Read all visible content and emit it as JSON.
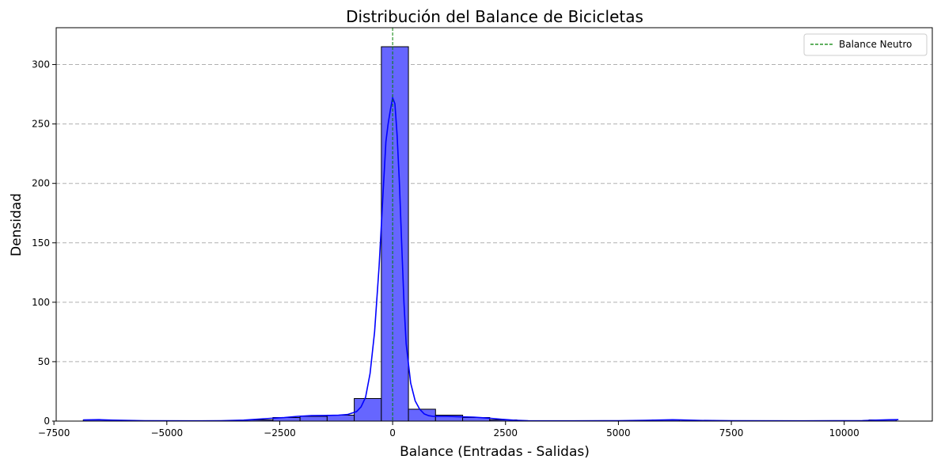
{
  "chart_data": {
    "type": "bar",
    "title": "Distribución del Balance de Bicicletas",
    "xlabel": "Balance (Entradas - Salidas)",
    "ylabel": "Densidad",
    "xlim": [
      -7450,
      11950
    ],
    "ylim": [
      0,
      331
    ],
    "x_ticks": [
      -7500,
      -5000,
      -2500,
      0,
      2500,
      5000,
      7500,
      10000
    ],
    "x_tick_labels": [
      "−7500",
      "−5000",
      "−2500",
      "0",
      "2500",
      "5000",
      "7500",
      "10000"
    ],
    "y_ticks": [
      0,
      50,
      100,
      150,
      200,
      250,
      300
    ],
    "y_tick_labels": [
      "0",
      "50",
      "100",
      "150",
      "200",
      "250",
      "300"
    ],
    "grid": "y-dashed",
    "bar_color": "#6666ff",
    "kde_color": "#0000ff",
    "bins": [
      {
        "start": -6850,
        "end": -6250,
        "value": 1
      },
      {
        "start": -6250,
        "end": -5650,
        "value": 0
      },
      {
        "start": -5650,
        "end": -5050,
        "value": 0
      },
      {
        "start": -5050,
        "end": -4450,
        "value": 0
      },
      {
        "start": -4450,
        "end": -3850,
        "value": 0
      },
      {
        "start": -3850,
        "end": -3250,
        "value": 0
      },
      {
        "start": -3250,
        "end": -2650,
        "value": 1
      },
      {
        "start": -2650,
        "end": -2050,
        "value": 3
      },
      {
        "start": -2050,
        "end": -1450,
        "value": 4
      },
      {
        "start": -1450,
        "end": -850,
        "value": 5
      },
      {
        "start": -850,
        "end": -250,
        "value": 19
      },
      {
        "start": -250,
        "end": 350,
        "value": 315
      },
      {
        "start": 350,
        "end": 950,
        "value": 10
      },
      {
        "start": 950,
        "end": 1550,
        "value": 5
      },
      {
        "start": 1550,
        "end": 2150,
        "value": 3
      },
      {
        "start": 2150,
        "end": 2750,
        "value": 1
      },
      {
        "start": 2750,
        "end": 3350,
        "value": 0
      },
      {
        "start": 3350,
        "end": 3950,
        "value": 0
      },
      {
        "start": 3950,
        "end": 4550,
        "value": 0
      },
      {
        "start": 4550,
        "end": 5150,
        "value": 0
      },
      {
        "start": 5150,
        "end": 5750,
        "value": 0
      },
      {
        "start": 5750,
        "end": 6350,
        "value": 1
      },
      {
        "start": 6350,
        "end": 6950,
        "value": 0
      },
      {
        "start": 6950,
        "end": 7550,
        "value": 0
      },
      {
        "start": 7550,
        "end": 8150,
        "value": 0
      },
      {
        "start": 8150,
        "end": 8750,
        "value": 0
      },
      {
        "start": 8750,
        "end": 9350,
        "value": 0
      },
      {
        "start": 9350,
        "end": 9950,
        "value": 0
      },
      {
        "start": 9950,
        "end": 10550,
        "value": 0
      },
      {
        "start": 10550,
        "end": 11150,
        "value": 1
      }
    ],
    "kde": {
      "x": [
        -6850,
        -6500,
        -6200,
        -5500,
        -4500,
        -3800,
        -3300,
        -3000,
        -2700,
        -2400,
        -2100,
        -1800,
        -1500,
        -1200,
        -1000,
        -800,
        -700,
        -600,
        -500,
        -400,
        -300,
        -200,
        -150,
        -100,
        -50,
        0,
        50,
        100,
        150,
        200,
        250,
        300,
        400,
        500,
        600,
        700,
        800,
        900,
        1000,
        1200,
        1500,
        1800,
        2100,
        2400,
        2700,
        3000,
        4000,
        5000,
        5600,
        6000,
        6200,
        6400,
        6800,
        7500,
        9000,
        10400,
        10700,
        11000,
        11200
      ],
      "y": [
        1,
        1.2,
        0.8,
        0.3,
        0.2,
        0.3,
        0.8,
        1.5,
        2.3,
        3,
        4,
        4.6,
        4.7,
        5,
        5.5,
        8,
        12,
        20,
        40,
        75,
        130,
        200,
        235,
        250,
        262,
        272,
        267,
        240,
        200,
        150,
        100,
        65,
        32,
        17,
        10,
        6,
        4.5,
        4,
        4,
        4,
        3.6,
        3.3,
        2.5,
        1.5,
        0.7,
        0.3,
        0.2,
        0.3,
        0.6,
        1,
        1.1,
        0.9,
        0.5,
        0.3,
        0.2,
        0.4,
        0.8,
        1.1,
        1.2
      ]
    },
    "reference_line": {
      "x": 0,
      "color": "#008000",
      "style": "dashed",
      "label": "Balance Neutro"
    },
    "legend": {
      "placement": "top-right",
      "entries": [
        "Balance Neutro"
      ]
    }
  }
}
